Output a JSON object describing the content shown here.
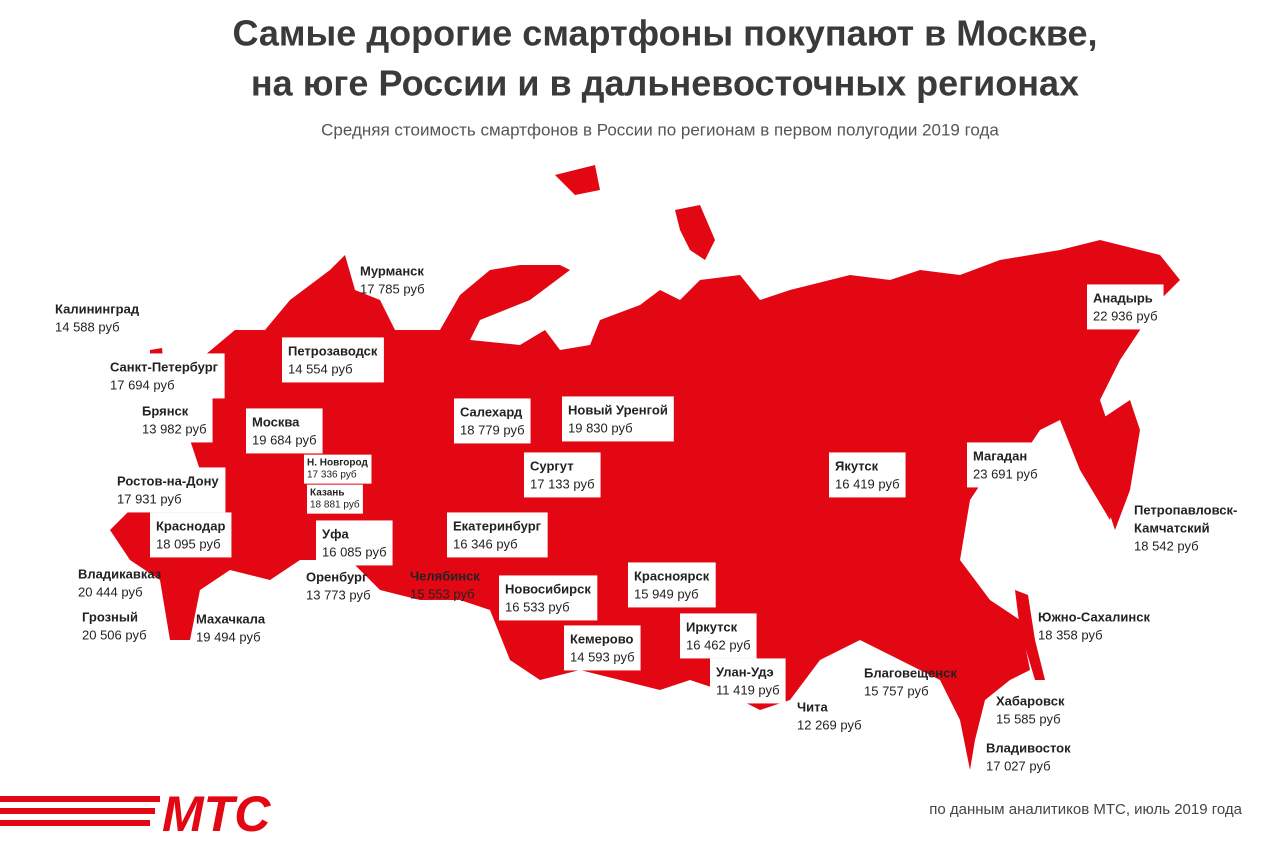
{
  "header": {
    "title_lines": [
      "Самые дорогие смартфоны покупают в Москве,",
      "на юге России и в дальневосточных регионах"
    ],
    "subtitle": "Средняя стоимость смартфонов в России по регионам в первом полугодии 2019 года"
  },
  "cities": [
    {
      "name": [
        "Мурманск"
      ],
      "price": "17 785 руб"
    },
    {
      "name": [
        "Калининград"
      ],
      "price": "14 588 руб"
    },
    {
      "name": [
        "Санкт-Петербург"
      ],
      "price": "17 694 руб"
    },
    {
      "name": [
        "Петрозаводск"
      ],
      "price": "14 554 руб"
    },
    {
      "name": [
        "Брянск"
      ],
      "price": "13 982 руб"
    },
    {
      "name": [
        "Москва"
      ],
      "price": "19 684 руб"
    },
    {
      "name": [
        "Н. Новгород"
      ],
      "price": "17 336 руб"
    },
    {
      "name": [
        "Казань"
      ],
      "price": "18 881 руб"
    },
    {
      "name": [
        "Ростов-на-Дону"
      ],
      "price": "17 931 руб"
    },
    {
      "name": [
        "Краснодар"
      ],
      "price": "18 095 руб"
    },
    {
      "name": [
        "Уфа"
      ],
      "price": "16 085 руб"
    },
    {
      "name": [
        "Владикавказ"
      ],
      "price": "20 444 руб"
    },
    {
      "name": [
        "Грозный"
      ],
      "price": "20 506 руб"
    },
    {
      "name": [
        "Махачкала"
      ],
      "price": "19 494 руб"
    },
    {
      "name": [
        "Оренбург"
      ],
      "price": "13 773 руб"
    },
    {
      "name": [
        "Челябинск"
      ],
      "price": "15 553 руб"
    },
    {
      "name": [
        "Салехард"
      ],
      "price": "18 779 руб"
    },
    {
      "name": [
        "Новый Уренгой"
      ],
      "price": "19 830 руб"
    },
    {
      "name": [
        "Сургут"
      ],
      "price": "17 133 руб"
    },
    {
      "name": [
        "Екатеринбург"
      ],
      "price": "16 346 руб"
    },
    {
      "name": [
        "Новосибирск"
      ],
      "price": "16 533 руб"
    },
    {
      "name": [
        "Красноярск"
      ],
      "price": "15 949 руб"
    },
    {
      "name": [
        "Кемерово"
      ],
      "price": "14 593 руб"
    },
    {
      "name": [
        "Иркутск"
      ],
      "price": "16 462 руб"
    },
    {
      "name": [
        "Улан-Удэ"
      ],
      "price": "11 419 руб"
    },
    {
      "name": [
        "Чита"
      ],
      "price": "12 269 руб"
    },
    {
      "name": [
        "Якутск"
      ],
      "price": "16 419 руб"
    },
    {
      "name": [
        "Благовещенск"
      ],
      "price": "15 757 руб"
    },
    {
      "name": [
        "Магадан"
      ],
      "price": "23 691 руб"
    },
    {
      "name": [
        "Анадырь"
      ],
      "price": "22 936 руб"
    },
    {
      "name": [
        "Петропавловск-",
        "Камчатский"
      ],
      "price": "18 542 руб"
    },
    {
      "name": [
        "Южно-Сахалинск"
      ],
      "price": "18 358 руб"
    },
    {
      "name": [
        "Хабаровск"
      ],
      "price": "15 585 руб"
    },
    {
      "name": [
        "Владивосток"
      ],
      "price": "17 027 руб"
    }
  ],
  "footer": {
    "logo": "МТС",
    "source": "по данным аналитиков МТС, июль 2019 года"
  }
}
